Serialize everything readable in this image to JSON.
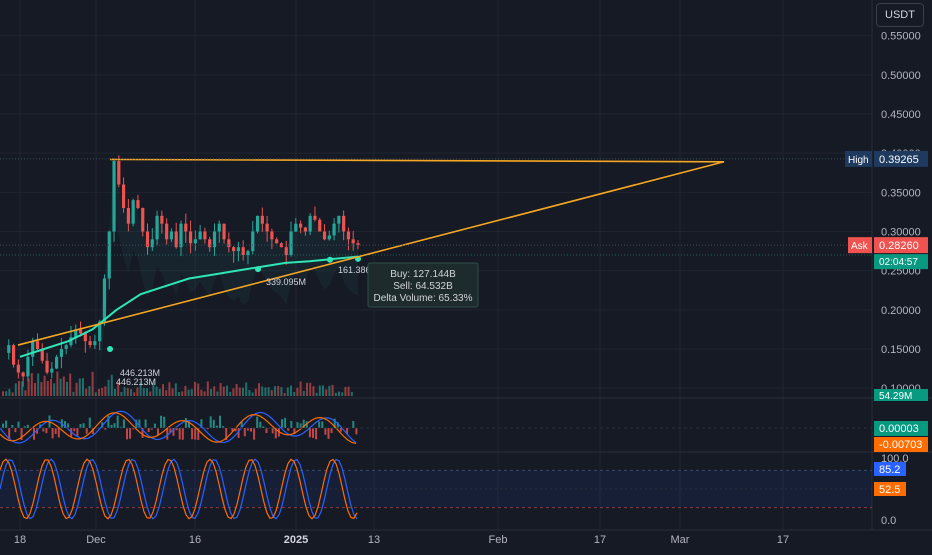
{
  "currency_label": "USDT",
  "colors": {
    "background": "#161a25",
    "grid": "#1f2430",
    "text": "#b2b5be",
    "up": "#26a69a",
    "down": "#ef5350",
    "vwap": "#2ee6b6",
    "trendline": "#f5a623",
    "macd": "#2962ff",
    "signal": "#ff6d00",
    "stoch_k": "#2962ff",
    "stoch_d": "#ff6d00",
    "high_tag": "#1e3a5f",
    "ask_tag": "#ef5350",
    "green_tag": "#089981",
    "orange_tag": "#ff6d00",
    "blue_tag": "#2962ff"
  },
  "chart_data": [
    {
      "type": "candlestick",
      "x_ticks": [
        "18",
        "Dec",
        "16",
        "2025",
        "13",
        "Feb",
        "17",
        "Mar",
        "17"
      ],
      "y_ticks": [
        "0.55000",
        "0.50000",
        "0.45000",
        "0.40000",
        "0.35000",
        "0.30000",
        "0.25000",
        "0.20000",
        "0.15000",
        "0.10000"
      ],
      "ylim": [
        0.09,
        0.57
      ],
      "price_path": [
        0.145,
        0.155,
        0.13,
        0.12,
        0.115,
        0.14,
        0.16,
        0.15,
        0.135,
        0.12,
        0.125,
        0.14,
        0.15,
        0.155,
        0.165,
        0.175,
        0.17,
        0.16,
        0.155,
        0.16,
        0.185,
        0.24,
        0.3,
        0.39,
        0.36,
        0.33,
        0.31,
        0.34,
        0.33,
        0.3,
        0.28,
        0.29,
        0.32,
        0.31,
        0.29,
        0.3,
        0.28,
        0.31,
        0.3,
        0.285,
        0.29,
        0.3,
        0.29,
        0.28,
        0.3,
        0.31,
        0.29,
        0.28,
        0.275,
        0.28,
        0.27,
        0.275,
        0.3,
        0.32,
        0.31,
        0.3,
        0.29,
        0.285,
        0.28,
        0.27,
        0.3,
        0.31,
        0.305,
        0.3,
        0.32,
        0.315,
        0.3,
        0.29,
        0.295,
        0.31,
        0.32,
        0.3,
        0.29,
        0.285,
        0.2826
      ],
      "vwap_line": [
        0.14,
        0.15,
        0.16,
        0.175,
        0.2,
        0.22,
        0.23,
        0.24,
        0.245,
        0.25,
        0.255,
        0.26,
        0.262,
        0.265,
        0.268
      ],
      "volume_labels": [
        "446.213M",
        "446.213M",
        "339.095M",
        "161.386M"
      ],
      "tooltip": {
        "buy": "Buy: 127.144B",
        "sell": "Sell: 64.532B",
        "delta": "Delta Volume: 65.33%"
      },
      "high_label": "High",
      "high_value": "0.39265",
      "ask_label": "Ask",
      "ask_value": "0.28260",
      "countdown": "02:04:57",
      "volume_value": "54.29M"
    },
    {
      "type": "bar",
      "name": "MACD",
      "values": [
        3e-05,
        -0.00703
      ],
      "last_macd": "0.00003",
      "last_signal": "-0.00703"
    },
    {
      "type": "line",
      "name": "Stochastic",
      "y_ticks": [
        "100.0",
        "50.0",
        "0.0"
      ],
      "ylim": [
        0,
        100
      ],
      "k_value": "85.2",
      "d_value": "52.5"
    }
  ]
}
